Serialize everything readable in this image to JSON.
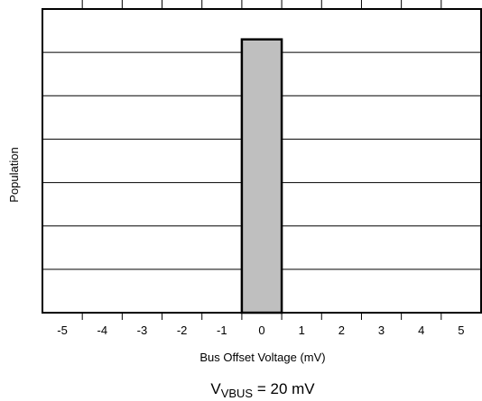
{
  "chart_data": {
    "type": "bar",
    "title": "",
    "xlabel": "Bus Offset Voltage (mV)",
    "ylabel": "Population",
    "x_ticks": [
      "-5",
      "-4",
      "-3",
      "-2",
      "-1",
      "0",
      "1",
      "2",
      "3",
      "4",
      "5"
    ],
    "xlim": [
      -5.5,
      5.5
    ],
    "ylim": [
      0,
      7
    ],
    "y_gridlines": [
      1,
      2,
      3,
      4,
      5,
      6
    ],
    "y_tick_labels_shown": false,
    "grid": "horizontal",
    "bars": [
      {
        "x_start": -0.5,
        "x_end": 0.5,
        "value": 6.3
      }
    ],
    "bar_color": "#bfbfbf",
    "condition": {
      "prefix": "V",
      "subscript": "VBUS",
      "suffix": " = 20 mV"
    }
  }
}
